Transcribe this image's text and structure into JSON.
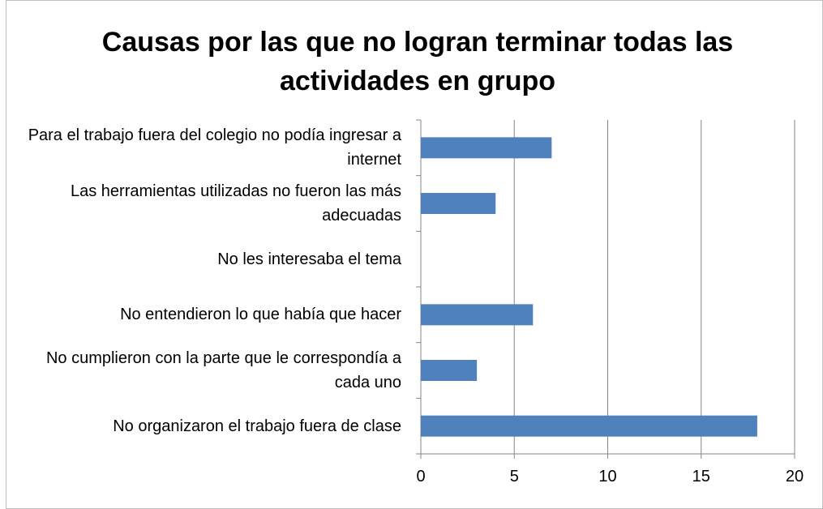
{
  "chart_data": {
    "type": "barh",
    "title": "Causas por las que no logran terminar todas las actividades en grupo",
    "categories": [
      "Para el trabajo fuera del colegio no podía ingresar a internet",
      "Las herramientas utilizadas no fueron las más adecuadas",
      "No les interesaba el tema",
      "No entendieron lo que había que hacer",
      "No cumplieron con la parte que le correspondía a cada uno",
      "No organizaron el trabajo fuera de clase"
    ],
    "values": [
      7,
      4,
      0,
      6,
      3,
      18
    ],
    "color": "#4f81bd",
    "xlim": [
      0,
      20
    ],
    "xticks": [
      0,
      5,
      10,
      15,
      20
    ],
    "grid": true
  }
}
